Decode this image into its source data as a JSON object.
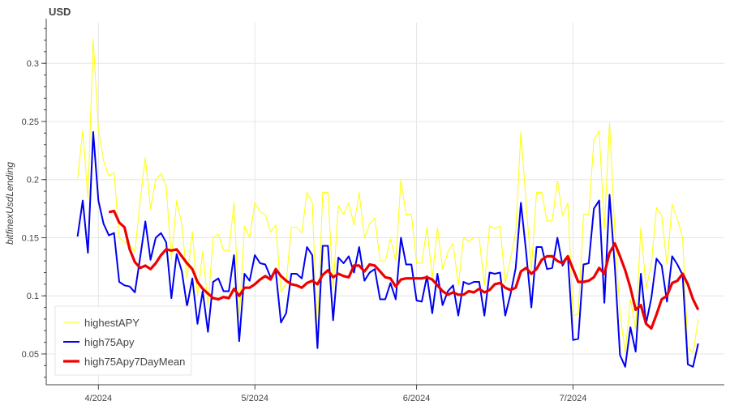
{
  "chart_data": {
    "type": "line",
    "title": "USD",
    "xlabel": "",
    "ylabel": "bitfinexUsdLending",
    "xlim": [
      "2024-03-22",
      "2024-07-30"
    ],
    "ylim": [
      0.0235,
      0.335
    ],
    "grid": true,
    "legend_position": "bottom-left",
    "x_ticks": [
      {
        "label": "4/2024",
        "date": "2024-04-01"
      },
      {
        "label": "5/2024",
        "date": "2024-05-01"
      },
      {
        "label": "6/2024",
        "date": "2024-06-01"
      },
      {
        "label": "7/2024",
        "date": "2024-07-01"
      }
    ],
    "y_ticks": [
      "0.05",
      "0.1",
      "0.15",
      "0.2",
      "0.25",
      "0.3"
    ],
    "x": [
      "2024-03-28",
      "2024-03-29",
      "2024-03-30",
      "2024-03-31",
      "2024-04-01",
      "2024-04-02",
      "2024-04-03",
      "2024-04-04",
      "2024-04-05",
      "2024-04-06",
      "2024-04-07",
      "2024-04-08",
      "2024-04-09",
      "2024-04-10",
      "2024-04-11",
      "2024-04-12",
      "2024-04-13",
      "2024-04-14",
      "2024-04-15",
      "2024-04-16",
      "2024-04-17",
      "2024-04-18",
      "2024-04-19",
      "2024-04-20",
      "2024-04-21",
      "2024-04-22",
      "2024-04-23",
      "2024-04-24",
      "2024-04-25",
      "2024-04-26",
      "2024-04-27",
      "2024-04-28",
      "2024-04-29",
      "2024-04-30",
      "2024-05-01",
      "2024-05-02",
      "2024-05-03",
      "2024-05-04",
      "2024-05-05",
      "2024-05-06",
      "2024-05-07",
      "2024-05-08",
      "2024-05-09",
      "2024-05-10",
      "2024-05-11",
      "2024-05-12",
      "2024-05-13",
      "2024-05-14",
      "2024-05-15",
      "2024-05-16",
      "2024-05-17",
      "2024-05-18",
      "2024-05-19",
      "2024-05-20",
      "2024-05-21",
      "2024-05-22",
      "2024-05-23",
      "2024-05-24",
      "2024-05-25",
      "2024-05-26",
      "2024-05-27",
      "2024-05-28",
      "2024-05-29",
      "2024-05-30",
      "2024-05-31",
      "2024-06-01",
      "2024-06-02",
      "2024-06-03",
      "2024-06-04",
      "2024-06-05",
      "2024-06-06",
      "2024-06-07",
      "2024-06-08",
      "2024-06-09",
      "2024-06-10",
      "2024-06-11",
      "2024-06-12",
      "2024-06-13",
      "2024-06-14",
      "2024-06-15",
      "2024-06-16",
      "2024-06-17",
      "2024-06-18",
      "2024-06-19",
      "2024-06-20",
      "2024-06-21",
      "2024-06-22",
      "2024-06-23",
      "2024-06-24",
      "2024-06-25",
      "2024-06-26",
      "2024-06-27",
      "2024-06-28",
      "2024-06-29",
      "2024-06-30",
      "2024-07-01",
      "2024-07-02",
      "2024-07-03",
      "2024-07-04",
      "2024-07-05",
      "2024-07-06",
      "2024-07-07",
      "2024-07-08",
      "2024-07-09",
      "2024-07-10",
      "2024-07-11",
      "2024-07-12",
      "2024-07-13",
      "2024-07-14",
      "2024-07-15",
      "2024-07-16",
      "2024-07-17",
      "2024-07-18",
      "2024-07-19",
      "2024-07-20",
      "2024-07-21",
      "2024-07-22",
      "2024-07-23",
      "2024-07-24",
      "2024-07-25"
    ],
    "series": [
      {
        "name": "highestAPY",
        "color": "#ffff00",
        "values": [
          0.201,
          0.242,
          0.184,
          0.321,
          0.243,
          0.216,
          0.203,
          0.206,
          0.15,
          0.146,
          0.144,
          0.138,
          0.182,
          0.219,
          0.175,
          0.2,
          0.205,
          0.194,
          0.131,
          0.182,
          0.161,
          0.115,
          0.155,
          0.1,
          0.138,
          0.092,
          0.15,
          0.153,
          0.139,
          0.139,
          0.18,
          0.081,
          0.16,
          0.15,
          0.18,
          0.172,
          0.17,
          0.155,
          0.161,
          0.103,
          0.111,
          0.159,
          0.159,
          0.154,
          0.189,
          0.18,
          0.065,
          0.189,
          0.189,
          0.106,
          0.178,
          0.17,
          0.18,
          0.161,
          0.189,
          0.15,
          0.162,
          0.167,
          0.13,
          0.13,
          0.149,
          0.13,
          0.2,
          0.17,
          0.17,
          0.128,
          0.128,
          0.159,
          0.115,
          0.159,
          0.123,
          0.138,
          0.145,
          0.109,
          0.15,
          0.147,
          0.15,
          0.15,
          0.109,
          0.16,
          0.158,
          0.16,
          0.111,
          0.132,
          0.155,
          0.241,
          0.18,
          0.122,
          0.189,
          0.189,
          0.164,
          0.165,
          0.199,
          0.169,
          0.18,
          0.083,
          0.084,
          0.17,
          0.17,
          0.234,
          0.242,
          0.157,
          0.249,
          0.155,
          0.085,
          0.051,
          0.097,
          0.071,
          0.159,
          0.106,
          0.127,
          0.176,
          0.169,
          0.127,
          0.179,
          0.166,
          0.15,
          0.055,
          0.051,
          0.08
        ]
      },
      {
        "name": "high75Apy",
        "color": "#0000ee",
        "values": [
          0.151,
          0.182,
          0.137,
          0.241,
          0.182,
          0.162,
          0.152,
          0.154,
          0.112,
          0.109,
          0.108,
          0.103,
          0.133,
          0.164,
          0.131,
          0.15,
          0.154,
          0.146,
          0.098,
          0.136,
          0.121,
          0.091,
          0.115,
          0.076,
          0.104,
          0.069,
          0.112,
          0.115,
          0.104,
          0.104,
          0.135,
          0.061,
          0.119,
          0.113,
          0.135,
          0.128,
          0.127,
          0.116,
          0.121,
          0.077,
          0.085,
          0.119,
          0.119,
          0.115,
          0.142,
          0.135,
          0.055,
          0.143,
          0.143,
          0.079,
          0.133,
          0.128,
          0.134,
          0.12,
          0.142,
          0.113,
          0.12,
          0.123,
          0.097,
          0.097,
          0.111,
          0.097,
          0.15,
          0.127,
          0.127,
          0.096,
          0.095,
          0.117,
          0.085,
          0.119,
          0.092,
          0.104,
          0.109,
          0.083,
          0.112,
          0.11,
          0.112,
          0.112,
          0.083,
          0.12,
          0.119,
          0.12,
          0.083,
          0.101,
          0.124,
          0.18,
          0.138,
          0.09,
          0.142,
          0.142,
          0.123,
          0.124,
          0.15,
          0.126,
          0.134,
          0.062,
          0.063,
          0.127,
          0.128,
          0.175,
          0.182,
          0.094,
          0.187,
          0.125,
          0.049,
          0.039,
          0.073,
          0.052,
          0.119,
          0.076,
          0.098,
          0.132,
          0.126,
          0.095,
          0.134,
          0.127,
          0.118,
          0.041,
          0.039,
          0.059
        ]
      },
      {
        "name": "high75Apy7DayMean",
        "color": "#ee0000",
        "values": [
          null,
          null,
          null,
          null,
          null,
          null,
          0.172,
          0.173,
          0.163,
          0.159,
          0.14,
          0.129,
          0.124,
          0.126,
          0.123,
          0.128,
          0.135,
          0.14,
          0.139,
          0.14,
          0.134,
          0.128,
          0.123,
          0.112,
          0.106,
          0.102,
          0.098,
          0.097,
          0.099,
          0.098,
          0.106,
          0.1,
          0.107,
          0.107,
          0.11,
          0.114,
          0.117,
          0.114,
          0.123,
          0.117,
          0.113,
          0.11,
          0.109,
          0.107,
          0.111,
          0.113,
          0.11,
          0.118,
          0.122,
          0.116,
          0.119,
          0.117,
          0.116,
          0.126,
          0.126,
          0.121,
          0.127,
          0.126,
          0.121,
          0.116,
          0.115,
          0.108,
          0.114,
          0.115,
          0.115,
          0.115,
          0.115,
          0.116,
          0.114,
          0.109,
          0.104,
          0.101,
          0.103,
          0.101,
          0.101,
          0.104,
          0.103,
          0.106,
          0.103,
          0.105,
          0.11,
          0.111,
          0.107,
          0.105,
          0.107,
          0.121,
          0.124,
          0.119,
          0.123,
          0.131,
          0.134,
          0.134,
          0.13,
          0.128,
          0.134,
          0.123,
          0.112,
          0.112,
          0.113,
          0.116,
          0.124,
          0.119,
          0.137,
          0.145,
          0.134,
          0.122,
          0.107,
          0.088,
          0.092,
          0.076,
          0.072,
          0.084,
          0.097,
          0.1,
          0.111,
          0.113,
          0.119,
          0.11,
          0.097,
          0.088
        ]
      }
    ]
  }
}
